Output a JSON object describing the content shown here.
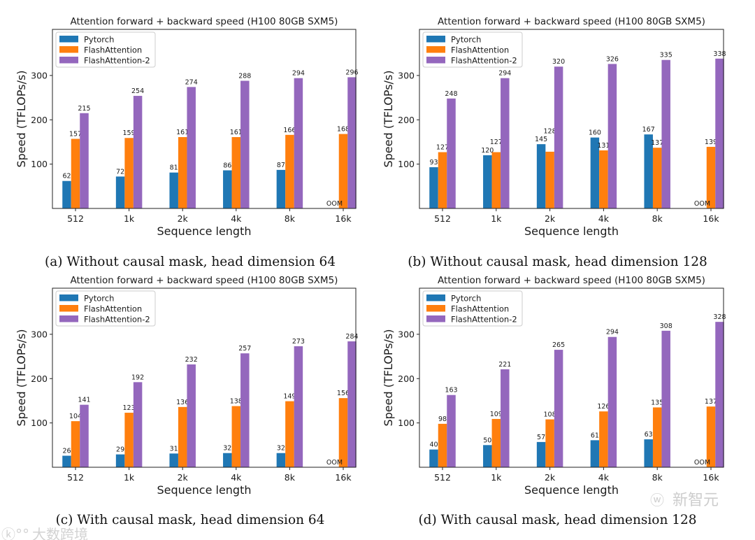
{
  "chart_data": [
    {
      "type": "bar",
      "title": "Attention forward + backward speed (H100 80GB SXM5)",
      "caption": "(a) Without causal mask, head dimension 64",
      "xlabel": "Sequence length",
      "ylabel": "Speed (TFLOPs/s)",
      "ylim": [
        0,
        404
      ],
      "yticks": [
        100,
        200,
        300
      ],
      "grid": false,
      "legend": "top-left",
      "categories": [
        "512",
        "1k",
        "2k",
        "4k",
        "8k",
        "16k"
      ],
      "series": [
        {
          "name": "Pytorch",
          "color": "#1f77b4",
          "values": [
            62,
            72,
            81,
            86,
            87,
            null
          ]
        },
        {
          "name": "FlashAttention",
          "color": "#ff7f0e",
          "values": [
            157,
            159,
            161,
            161,
            166,
            168
          ]
        },
        {
          "name": "FlashAttention-2",
          "color": "#9467bd",
          "values": [
            215,
            254,
            274,
            288,
            294,
            296
          ]
        }
      ],
      "annotations": [
        {
          "series": "Pytorch",
          "category": "16k",
          "text": "OOM"
        }
      ]
    },
    {
      "type": "bar",
      "title": "Attention forward + backward speed (H100 80GB SXM5)",
      "caption": "(b) Without causal mask, head dimension 128",
      "xlabel": "Sequence length",
      "ylabel": "Speed (TFLOPs/s)",
      "ylim": [
        0,
        404
      ],
      "yticks": [
        100,
        200,
        300
      ],
      "grid": false,
      "legend": "top-left",
      "categories": [
        "512",
        "1k",
        "2k",
        "4k",
        "8k",
        "16k"
      ],
      "series": [
        {
          "name": "Pytorch",
          "color": "#1f77b4",
          "values": [
            93,
            120,
            145,
            160,
            167,
            null
          ]
        },
        {
          "name": "FlashAttention",
          "color": "#ff7f0e",
          "values": [
            127,
            127,
            128,
            131,
            137,
            139
          ]
        },
        {
          "name": "FlashAttention-2",
          "color": "#9467bd",
          "values": [
            248,
            294,
            320,
            326,
            335,
            338
          ]
        }
      ],
      "annotations": [
        {
          "series": "Pytorch",
          "category": "16k",
          "text": "OOM"
        }
      ]
    },
    {
      "type": "bar",
      "title": "Attention forward + backward speed (H100 80GB SXM5)",
      "caption": "(c) With causal mask, head dimension 64",
      "xlabel": "Sequence length",
      "ylabel": "Speed (TFLOPs/s)",
      "ylim": [
        0,
        404
      ],
      "yticks": [
        100,
        200,
        300
      ],
      "grid": false,
      "legend": "top-left",
      "categories": [
        "512",
        "1k",
        "2k",
        "4k",
        "8k",
        "16k"
      ],
      "series": [
        {
          "name": "Pytorch",
          "color": "#1f77b4",
          "values": [
            26,
            29,
            31,
            32,
            32,
            null
          ]
        },
        {
          "name": "FlashAttention",
          "color": "#ff7f0e",
          "values": [
            104,
            123,
            136,
            138,
            149,
            156
          ]
        },
        {
          "name": "FlashAttention-2",
          "color": "#9467bd",
          "values": [
            141,
            192,
            232,
            257,
            273,
            284
          ]
        }
      ],
      "annotations": [
        {
          "series": "Pytorch",
          "category": "16k",
          "text": "OOM"
        }
      ]
    },
    {
      "type": "bar",
      "title": "Attention forward + backward speed (H100 80GB SXM5)",
      "caption": "(d) With causal mask, head dimension 128",
      "xlabel": "Sequence length",
      "ylabel": "Speed (TFLOPs/s)",
      "ylim": [
        0,
        404
      ],
      "yticks": [
        100,
        200,
        300
      ],
      "grid": false,
      "legend": "top-left",
      "categories": [
        "512",
        "1k",
        "2k",
        "4k",
        "8k",
        "16k"
      ],
      "series": [
        {
          "name": "Pytorch",
          "color": "#1f77b4",
          "values": [
            40,
            50,
            57,
            61,
            63,
            null
          ]
        },
        {
          "name": "FlashAttention",
          "color": "#ff7f0e",
          "values": [
            98,
            109,
            108,
            126,
            135,
            137
          ]
        },
        {
          "name": "FlashAttention-2",
          "color": "#9467bd",
          "values": [
            163,
            221,
            265,
            294,
            308,
            328
          ]
        }
      ],
      "annotations": [
        {
          "series": "Pytorch",
          "category": "16k",
          "text": "OOM"
        }
      ]
    }
  ],
  "watermarks": [
    "大数跨境",
    "新智元"
  ]
}
